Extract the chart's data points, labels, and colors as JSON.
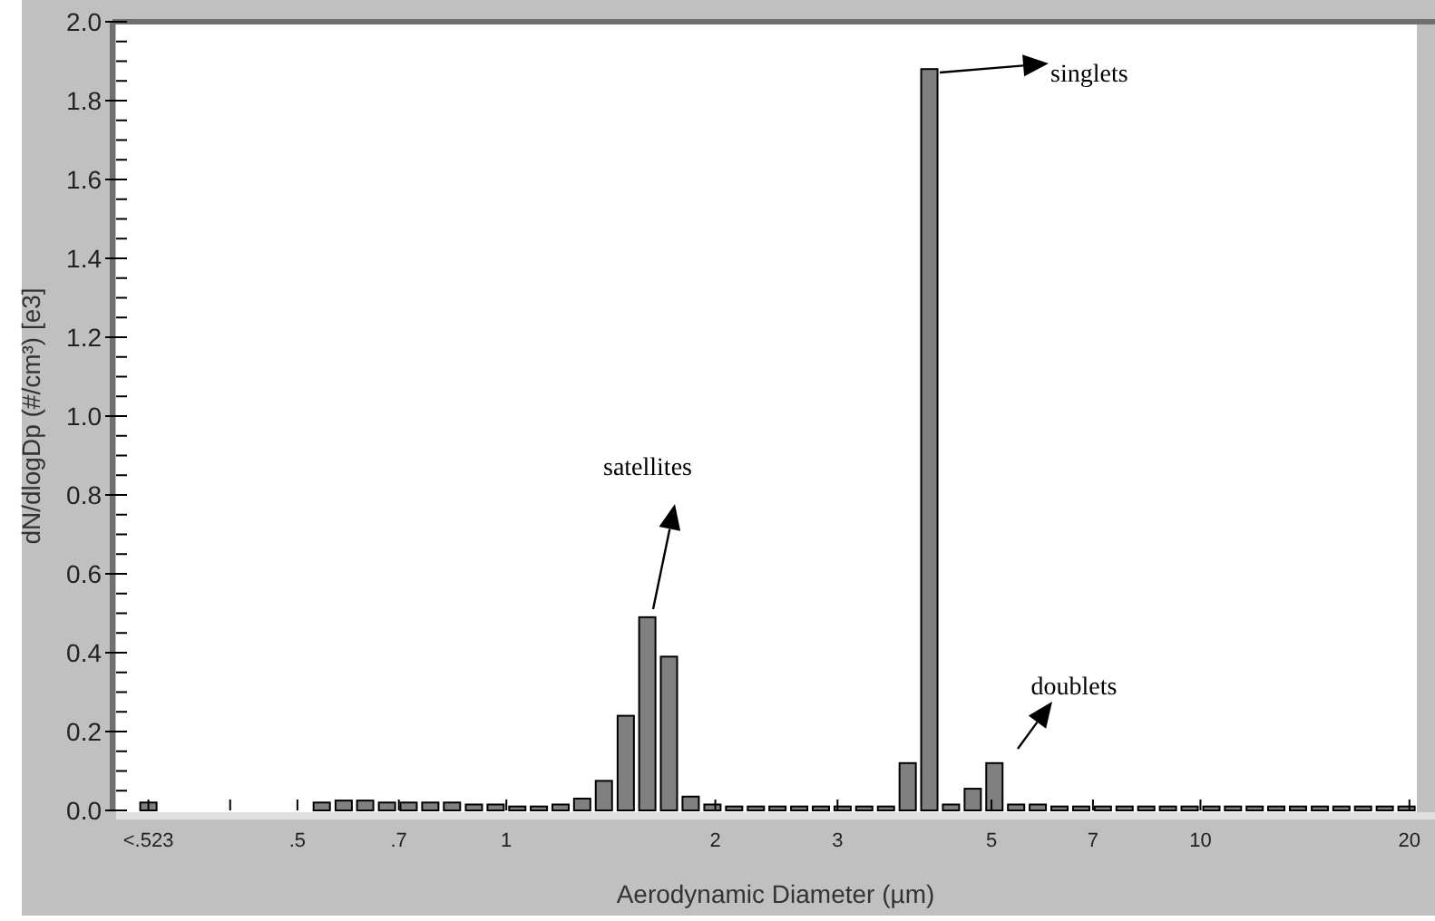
{
  "chart_data": {
    "type": "bar",
    "xlabel": "Aerodynamic Diameter (µm)",
    "ylabel": "dN/dlogDp (#/cm³) [e3]",
    "log": "x",
    "color": "#808080",
    "x": [
      0.305,
      0.542,
      0.583,
      0.626,
      0.673,
      0.723,
      0.777,
      0.835,
      0.898,
      0.965,
      1.037,
      1.114,
      1.197,
      1.286,
      1.382,
      1.486,
      1.596,
      1.715,
      1.843,
      1.981,
      2.129,
      2.288,
      2.458,
      2.642,
      2.839,
      3.051,
      3.278,
      3.523,
      3.786,
      4.068,
      4.371,
      4.698,
      5.048,
      5.425,
      5.829,
      6.264,
      6.732,
      7.234,
      7.774,
      8.354,
      8.977,
      9.647,
      10.37,
      11.14,
      11.97,
      12.86,
      13.82,
      14.86,
      15.96,
      17.15,
      18.43,
      19.81
    ],
    "values": [
      0.02,
      0.02,
      0.025,
      0.025,
      0.02,
      0.02,
      0.02,
      0.02,
      0.015,
      0.015,
      0.01,
      0.01,
      0.015,
      0.03,
      0.075,
      0.24,
      0.49,
      0.39,
      0.035,
      0.015,
      0.01,
      0.01,
      0.01,
      0.01,
      0.01,
      0.01,
      0.01,
      0.01,
      0.12,
      1.88,
      0.015,
      0.055,
      0.12,
      0.015,
      0.015,
      0.01,
      0.01,
      0.01,
      0.01,
      0.01,
      0.01,
      0.01,
      0.01,
      0.01,
      0.01,
      0.01,
      0.01,
      0.01,
      0.01,
      0.01,
      0.01,
      0.01
    ],
    "xlim": [
      0.274,
      20.5
    ],
    "xticks": [
      {
        "value": 0.305,
        "label": "<.523"
      },
      {
        "value": 0.4,
        "label": null
      },
      {
        "value": 0.5,
        "label": ".5"
      },
      {
        "value": 0.7,
        "label": ".7"
      },
      1,
      2,
      3,
      5,
      7,
      10,
      20
    ],
    "ylim": [
      0,
      2
    ],
    "yticks": [
      {
        "value": 0,
        "label": "0.0"
      },
      {
        "value": 0.05,
        "label": null
      },
      {
        "value": 0.1,
        "label": null
      },
      {
        "value": 0.15,
        "label": null
      },
      {
        "value": 0.2,
        "label": "0.2"
      },
      {
        "value": 0.25,
        "label": null
      },
      {
        "value": 0.3,
        "label": null
      },
      {
        "value": 0.35,
        "label": null
      },
      {
        "value": 0.4,
        "label": "0.4"
      },
      {
        "value": 0.45,
        "label": null
      },
      {
        "value": 0.5,
        "label": null
      },
      {
        "value": 0.55,
        "label": null
      },
      {
        "value": 0.6,
        "label": "0.6"
      },
      {
        "value": 0.65,
        "label": null
      },
      {
        "value": 0.7,
        "label": null
      },
      {
        "value": 0.75,
        "label": null
      },
      {
        "value": 0.8,
        "label": "0.8"
      },
      {
        "value": 0.85,
        "label": null
      },
      {
        "value": 0.9,
        "label": null
      },
      {
        "value": 0.95,
        "label": null
      },
      {
        "value": 1,
        "label": "1.0"
      },
      {
        "value": 1.05,
        "label": null
      },
      {
        "value": 1.1,
        "label": null
      },
      {
        "value": 1.15,
        "label": null
      },
      {
        "value": 1.2,
        "label": "1.2"
      },
      {
        "value": 1.25,
        "label": null
      },
      {
        "value": 1.3,
        "label": null
      },
      {
        "value": 1.35,
        "label": null
      },
      {
        "value": 1.4,
        "label": "1.4"
      },
      {
        "value": 1.45,
        "label": null
      },
      {
        "value": 1.5,
        "label": null
      },
      {
        "value": 1.55,
        "label": null
      },
      {
        "value": 1.6,
        "label": "1.6"
      },
      {
        "value": 1.65,
        "label": null
      },
      {
        "value": 1.7,
        "label": null
      },
      {
        "value": 1.75,
        "label": null
      },
      {
        "value": 1.8,
        "label": "1.8"
      },
      {
        "value": 1.85,
        "label": null
      },
      {
        "value": 1.9,
        "label": null
      },
      {
        "value": 1.95,
        "label": null
      },
      {
        "value": 2,
        "label": "2.0"
      }
    ],
    "annotations": [
      "satellites",
      "singlets",
      "doublets"
    ]
  }
}
